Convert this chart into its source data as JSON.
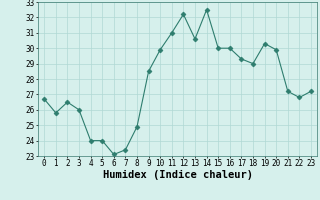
{
  "x": [
    0,
    1,
    2,
    3,
    4,
    5,
    6,
    7,
    8,
    9,
    10,
    11,
    12,
    13,
    14,
    15,
    16,
    17,
    18,
    19,
    20,
    21,
    22,
    23
  ],
  "y": [
    26.7,
    25.8,
    26.5,
    26.0,
    24.0,
    24.0,
    23.1,
    23.4,
    24.9,
    28.5,
    29.9,
    31.0,
    32.2,
    30.6,
    32.5,
    30.0,
    30.0,
    29.3,
    29.0,
    30.3,
    29.9,
    27.2,
    26.8,
    27.2
  ],
  "line_color": "#2e7d6e",
  "marker": "D",
  "marker_color": "#2e7d6e",
  "bg_color": "#d6f0ec",
  "grid_color": "#b0d8d4",
  "xlabel": "Humidex (Indice chaleur)",
  "xlim": [
    -0.5,
    23.5
  ],
  "ylim": [
    23,
    33
  ],
  "yticks": [
    23,
    24,
    25,
    26,
    27,
    28,
    29,
    30,
    31,
    32,
    33
  ],
  "xticks": [
    0,
    1,
    2,
    3,
    4,
    5,
    6,
    7,
    8,
    9,
    10,
    11,
    12,
    13,
    14,
    15,
    16,
    17,
    18,
    19,
    20,
    21,
    22,
    23
  ],
  "tick_labelsize": 5.5,
  "xlabel_fontsize": 7.5
}
